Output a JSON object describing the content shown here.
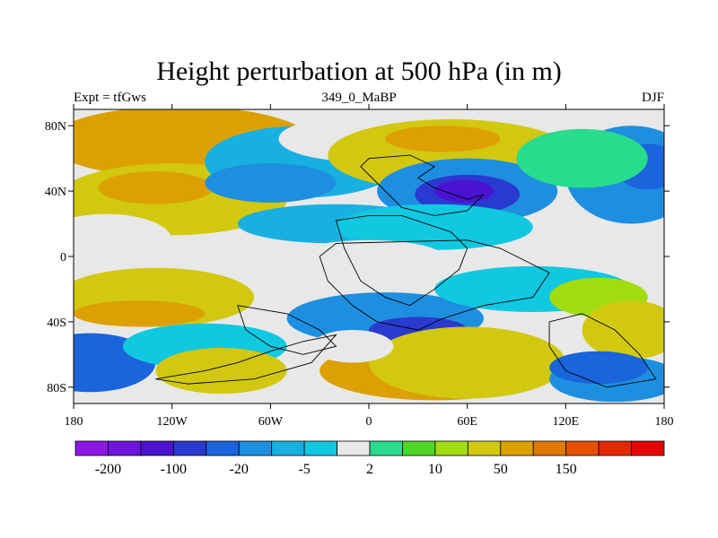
{
  "chart_data": {
    "type": "heatmap",
    "title": "Height perturbation at 500 hPa (in m)",
    "left_label": "Expt = tfGws",
    "center_label": "349_0_MaBP",
    "right_label": "DJF",
    "x_ticks": [
      "180",
      "120W",
      "60W",
      "0",
      "60E",
      "120E",
      "180"
    ],
    "x_tick_values": [
      -180,
      -120,
      -60,
      0,
      60,
      120,
      180
    ],
    "y_ticks": [
      "80N",
      "40N",
      "0",
      "40S",
      "80S"
    ],
    "y_tick_values": [
      80,
      40,
      0,
      -40,
      -80
    ],
    "xlim": [
      -180,
      180
    ],
    "ylim": [
      -90,
      90
    ],
    "colorbar_labels": [
      "-200",
      "-100",
      "-20",
      "-5",
      "2",
      "10",
      "50",
      "150"
    ],
    "colorbar_colors": [
      "#8c18e6",
      "#6e14dc",
      "#4b12d2",
      "#2a3ad0",
      "#1a64dc",
      "#1e8fe0",
      "#18b0e0",
      "#10c8e0",
      "#e8e8e8",
      "#28dc8c",
      "#50d428",
      "#a0dc10",
      "#d2c810",
      "#dca000",
      "#e07800",
      "#e65000",
      "#e62800",
      "#e60000"
    ]
  }
}
